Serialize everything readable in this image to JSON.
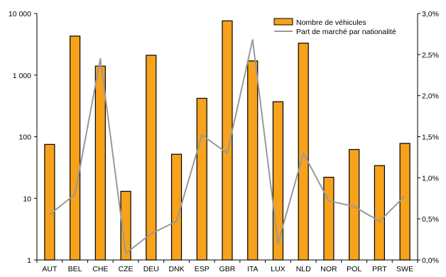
{
  "chart_data": {
    "type": "bar",
    "categories": [
      "AUT",
      "BEL",
      "CHE",
      "CZE",
      "DEU",
      "DNK",
      "ESP",
      "GBR",
      "ITA",
      "LUX",
      "NLD",
      "NOR",
      "POL",
      "PRT",
      "SWE"
    ],
    "series": [
      {
        "name": "Nombre de véhicules",
        "kind": "bar",
        "axis": "left",
        "color": "#f7a21b",
        "values": [
          75,
          4300,
          1400,
          13,
          2100,
          52,
          420,
          7600,
          1700,
          370,
          3300,
          22,
          62,
          34,
          78
        ]
      },
      {
        "name": "Part de marché par nationalité",
        "kind": "line",
        "axis": "right",
        "color": "#999999",
        "values": [
          0.55,
          0.8,
          2.45,
          0.08,
          0.32,
          0.47,
          1.52,
          1.3,
          2.68,
          0.2,
          1.3,
          0.72,
          0.65,
          0.47,
          0.78
        ]
      }
    ],
    "y_left": {
      "scale": "log",
      "range": [
        1,
        10000
      ],
      "ticks": [
        1,
        10,
        100,
        1000,
        10000
      ],
      "tick_labels": [
        "1",
        "10",
        "100",
        "1 000",
        "10 000"
      ]
    },
    "y_right": {
      "scale": "linear",
      "unit": "%",
      "range": [
        0,
        3
      ],
      "ticks": [
        0,
        0.5,
        1,
        1.5,
        2,
        2.5,
        3
      ],
      "tick_labels": [
        "0,0%",
        "0,5%",
        "1,0%",
        "1,5%",
        "2,0%",
        "2,5%",
        "3,0%"
      ]
    },
    "grid": false,
    "legend": "top-right",
    "title": "",
    "xlabel": "",
    "ylabel": ""
  }
}
